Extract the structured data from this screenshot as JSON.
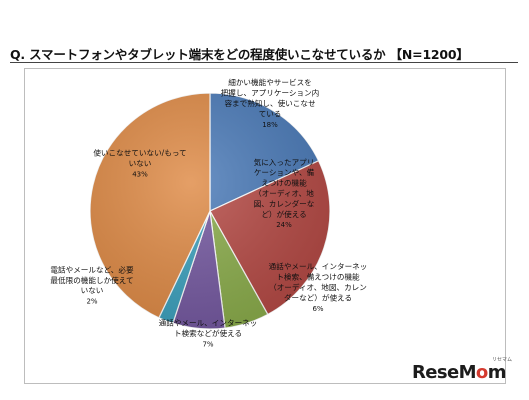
{
  "title": "Q. スマートフォンやタブレット端末をどの程度使いこなせているか 【N=1200】",
  "chart_data": {
    "type": "pie",
    "title": "Q. スマートフォンやタブレット端末をどの程度使いこなせているか 【N=1200】",
    "start_angle_deg": 90,
    "direction": "clockwise",
    "slices": [
      {
        "label": [
          "細かい機能やサービスを",
          "把握し、アプリケーション内",
          "容まで熟知し、使いこなせ",
          "ている"
        ],
        "value": 18,
        "value_label": "18%",
        "color": "#4a7ab8"
      },
      {
        "label": [
          "気に入ったアプリ",
          "ケーションや、備",
          "えつけの機能",
          "（オーディオ、地",
          "図、カレンダーな",
          "ど）が使える"
        ],
        "value": 24,
        "value_label": "24%",
        "color": "#b54944"
      },
      {
        "label": [
          "通話やメール、インターネッ",
          "ト検索、備えつけの機能",
          "（オーディオ、地図、カレン",
          "ダーなど）が使える"
        ],
        "value": 6,
        "value_label": "6%",
        "color": "#8aac4a"
      },
      {
        "label": [
          "通話やメール、インターネッ",
          "ト検索などが使える"
        ],
        "value": 7,
        "value_label": "7%",
        "color": "#7458a0"
      },
      {
        "label": [
          "電話やメールなど、必要",
          "最低限の機能しか使えて",
          "いない"
        ],
        "value": 2,
        "value_label": "2%",
        "color": "#3ba0bd"
      },
      {
        "label": [
          "使いこなせていない/もって",
          "いない"
        ],
        "value": 43,
        "value_label": "43%",
        "color": "#df8a45"
      }
    ]
  },
  "logo": {
    "text_a": "ReseM",
    "text_o": "o",
    "text_b": "m",
    "sub": "リセマム"
  }
}
